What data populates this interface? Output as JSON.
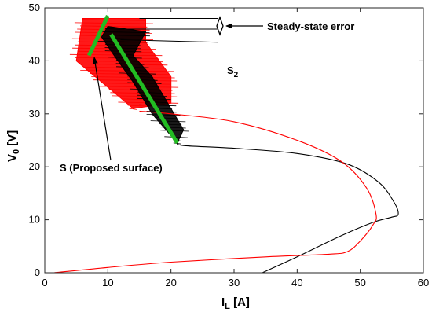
{
  "chart_data": {
    "type": "line",
    "title": "",
    "xlabel": {
      "main": "I",
      "sub": "L",
      "unit": " [A]"
    },
    "ylabel": {
      "main": "V",
      "sub": "0",
      "unit": " [V]"
    },
    "xlim": [
      0,
      60
    ],
    "ylim": [
      0,
      50
    ],
    "xticks": [
      0,
      10,
      20,
      30,
      40,
      50,
      60
    ],
    "yticks": [
      0,
      10,
      20,
      30,
      40,
      50
    ],
    "grid": false,
    "series": [
      {
        "color": "#000000",
        "points": [
          [
            34.5,
            0
          ],
          [
            40,
            3
          ],
          [
            47,
            7
          ],
          [
            52,
            9.5
          ],
          [
            55,
            10.5
          ],
          [
            56,
            11
          ],
          [
            55.5,
            13
          ],
          [
            53,
            17
          ],
          [
            48,
            20.5
          ],
          [
            40,
            22.5
          ],
          [
            30,
            23.5
          ],
          [
            22,
            24
          ],
          [
            21,
            24.5
          ]
        ]
      },
      {
        "color": "#ff0000",
        "points": [
          [
            1.5,
            0
          ],
          [
            10,
            1
          ],
          [
            20,
            2
          ],
          [
            35,
            3
          ],
          [
            45,
            3.5
          ],
          [
            48,
            4
          ],
          [
            50,
            6
          ],
          [
            52,
            9
          ],
          [
            52.5,
            11
          ],
          [
            51,
            16
          ],
          [
            47,
            21
          ],
          [
            40,
            25
          ],
          [
            30,
            28.5
          ],
          [
            20,
            30
          ],
          [
            15,
            30.5
          ]
        ]
      }
    ],
    "sliding_lines": [
      {
        "color": "#22bb22",
        "points": [
          [
            7,
            41
          ],
          [
            10,
            48.5
          ]
        ]
      },
      {
        "color": "#22bb22",
        "points": [
          [
            10.5,
            45
          ],
          [
            21,
            24.5
          ]
        ]
      }
    ],
    "chatter_regions": [
      {
        "color": "#ff0000",
        "envelope": [
          [
            5,
            40
          ],
          [
            6,
            48
          ],
          [
            16,
            48
          ],
          [
            16,
            43.5
          ],
          [
            20,
            37
          ],
          [
            20,
            32
          ],
          [
            14,
            31
          ],
          [
            11,
            34
          ],
          [
            7,
            38
          ]
        ]
      },
      {
        "color": "#000000",
        "envelope": [
          [
            9,
            44.5
          ],
          [
            10,
            46.5
          ],
          [
            16,
            45.5
          ],
          [
            14,
            41
          ],
          [
            17,
            37
          ],
          [
            20,
            31
          ],
          [
            22,
            27
          ],
          [
            21,
            24.5
          ],
          [
            17,
            30
          ],
          [
            14,
            36
          ],
          [
            11,
            41
          ]
        ]
      }
    ],
    "annotations": [
      {
        "id": "steady",
        "text": "Steady-state error",
        "lines": [
          [
            [
              15,
              48
            ],
            [
              27.5,
              48
            ]
          ],
          [
            [
              13,
              46
            ],
            [
              27.5,
              46
            ]
          ]
        ]
      },
      {
        "id": "s2",
        "text": "S",
        "sub": "2",
        "lines": [
          [
            [
              12,
              44
            ],
            [
              27.5,
              43.5
            ]
          ]
        ]
      },
      {
        "id": "s",
        "text": "S (Proposed surface)"
      }
    ]
  }
}
